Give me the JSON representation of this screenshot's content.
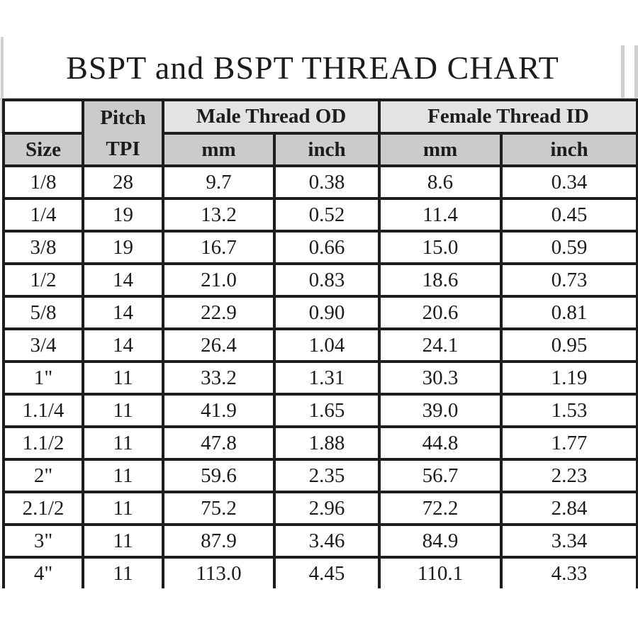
{
  "title": "BSPT and BSPT THREAD CHART",
  "colors": {
    "background": "#ffffff",
    "border_black": "#1d1d1d",
    "subheader_gray": "#cbcbcb",
    "group_header_gray": "#e3e3e3",
    "frame_line_gray": "#cfd2cf",
    "text": "#1c1c1c"
  },
  "table": {
    "pitch_header_line1": "Pitch",
    "pitch_header_line2": "TPI",
    "size_header": "Size",
    "male_group_header": "Male Thread OD",
    "female_group_header": "Female Thread ID",
    "male_mm_header": "mm",
    "male_inch_header": "inch",
    "female_mm_header": "mm",
    "female_inch_header": "inch"
  },
  "chart_data": {
    "type": "table",
    "title": "BSPT and BSPT THREAD CHART",
    "column_groups": [
      "",
      "Pitch TPI",
      "Male Thread OD",
      "Male Thread OD",
      "Female Thread ID",
      "Female Thread ID"
    ],
    "columns": [
      "Size",
      "Pitch TPI",
      "Male Thread OD (mm)",
      "Male Thread OD (inch)",
      "Female Thread ID (mm)",
      "Female Thread ID (inch)"
    ],
    "rows": [
      [
        "1/8",
        "28",
        "9.7",
        "0.38",
        "8.6",
        "0.34"
      ],
      [
        "1/4",
        "19",
        "13.2",
        "0.52",
        "11.4",
        "0.45"
      ],
      [
        "3/8",
        "19",
        "16.7",
        "0.66",
        "15.0",
        "0.59"
      ],
      [
        "1/2",
        "14",
        "21.0",
        "0.83",
        "18.6",
        "0.73"
      ],
      [
        "5/8",
        "14",
        "22.9",
        "0.90",
        "20.6",
        "0.81"
      ],
      [
        "3/4",
        "14",
        "26.4",
        "1.04",
        "24.1",
        "0.95"
      ],
      [
        "1\"",
        "11",
        "33.2",
        "1.31",
        "30.3",
        "1.19"
      ],
      [
        "1.1/4",
        "11",
        "41.9",
        "1.65",
        "39.0",
        "1.53"
      ],
      [
        "1.1/2",
        "11",
        "47.8",
        "1.88",
        "44.8",
        "1.77"
      ],
      [
        "2\"",
        "11",
        "59.6",
        "2.35",
        "56.7",
        "2.23"
      ],
      [
        "2.1/2",
        "11",
        "75.2",
        "2.96",
        "72.2",
        "2.84"
      ],
      [
        "3\"",
        "11",
        "87.9",
        "3.46",
        "84.9",
        "3.34"
      ],
      [
        "4\"",
        "11",
        "113.0",
        "4.45",
        "110.1",
        "4.33"
      ]
    ]
  }
}
